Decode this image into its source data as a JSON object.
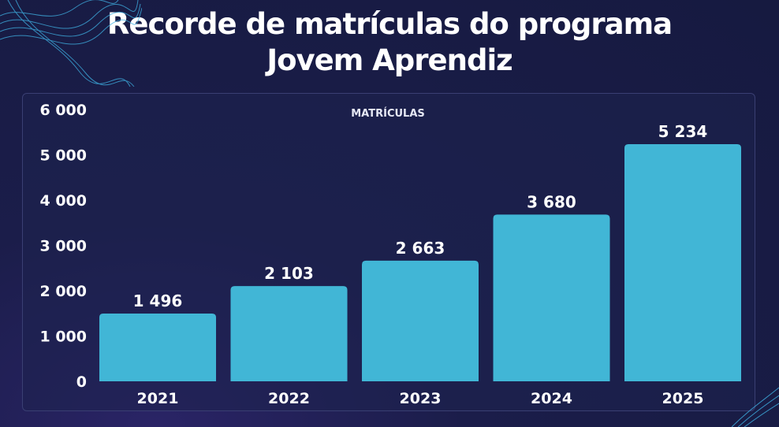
{
  "title_line1": "Recorde de matrículas do programa",
  "title_line2": "Jovem Aprendiz",
  "colors": {
    "background": "#161a40",
    "bar": "#41b6d6",
    "text": "#ffffff",
    "wave": "#3fb4e6"
  },
  "chart_data": {
    "type": "bar",
    "title": "",
    "series": [
      {
        "name": "MATRÍCULAS",
        "values": [
          1496,
          2103,
          2663,
          3680,
          5234
        ]
      }
    ],
    "categories": [
      "2021",
      "2022",
      "2023",
      "2024",
      "2025"
    ],
    "data_labels": [
      "1 496",
      "2 103",
      "2 663",
      "3 680",
      "5 234"
    ],
    "yticks": [
      0,
      1000,
      2000,
      3000,
      4000,
      5000,
      6000
    ],
    "ytick_labels": [
      "0",
      "1 000",
      "2 000",
      "3 000",
      "4 000",
      "5 000",
      "6 000"
    ],
    "ylim": [
      0,
      6000
    ],
    "legend_position": "top-center",
    "grid": false
  }
}
